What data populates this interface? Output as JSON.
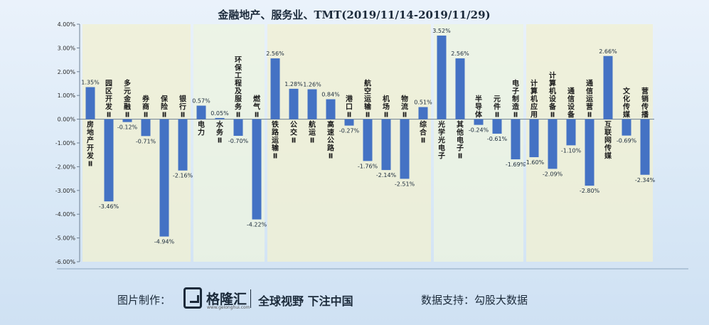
{
  "chart_data": {
    "type": "bar",
    "title": "金融地产、服务业、TMT(2019/11/14-2019/11/29)",
    "xlabel": "",
    "ylabel": "",
    "ylim": [
      -6,
      4
    ],
    "yticks": [
      "4.00%",
      "3.00%",
      "2.00%",
      "1.00%",
      "0.00%",
      "-1.00%",
      "-2.00%",
      "-3.00%",
      "-4.00%",
      "-5.00%",
      "-6.00%"
    ],
    "grid": false,
    "bar_color": "#4472c4",
    "categories": [
      "房地产开发Ⅱ",
      "园区开发Ⅱ",
      "多元金融Ⅱ",
      "券商Ⅱ",
      "保险Ⅱ",
      "银行Ⅱ",
      "电力",
      "水务Ⅱ",
      "环保工程及服务Ⅱ",
      "燃气Ⅱ",
      "铁路运输Ⅱ",
      "公交Ⅱ",
      "航运Ⅱ",
      "高速公路Ⅱ",
      "港口Ⅱ",
      "航空运输Ⅱ",
      "机场Ⅱ",
      "物流Ⅱ",
      "综合Ⅱ",
      "光学光电子",
      "其他电子Ⅱ",
      "半导体",
      "元件Ⅱ",
      "电子制造Ⅱ",
      "计算机应用",
      "计算机设备Ⅱ",
      "通信设备",
      "通信运营Ⅱ",
      "互联网传媒",
      "文化传媒",
      "营销传播"
    ],
    "values": [
      1.35,
      -3.46,
      -0.12,
      -0.71,
      -4.94,
      -2.16,
      0.57,
      0.05,
      -0.7,
      -4.22,
      2.56,
      1.28,
      1.26,
      0.84,
      -0.27,
      -1.76,
      -2.14,
      -2.51,
      0.51,
      3.52,
      2.56,
      -0.24,
      -0.61,
      -1.69,
      -1.6,
      -2.09,
      -1.1,
      -2.8,
      2.66,
      -0.69,
      -2.34
    ],
    "data_labels": [
      "1.35%",
      "-3.46%",
      "-0.12%",
      "-0.71%",
      "-4.94%",
      "-2.16%",
      "0.57%",
      "0.05%",
      "-0.70%",
      "-4.22%",
      "2.56%",
      "1.28%",
      "1.26%",
      "0.84%",
      "-0.27%",
      "-1.76%",
      "-2.14%",
      "-2.51%",
      "0.51%",
      "3.52%",
      "2.56%",
      "-0.24%",
      "-0.61%",
      "-1.69%",
      "-1.60%",
      "-2.09%",
      "-1.10%",
      "-2.80%",
      "2.66%",
      "-0.69%",
      "-2.34%"
    ],
    "group_colors": [
      "#f2f0d0",
      "#eef4df",
      "#f2f0d0",
      "#eef4df",
      "#f2f0d0"
    ],
    "group_spans": [
      [
        0,
        5
      ],
      [
        6,
        9
      ],
      [
        10,
        18
      ],
      [
        19,
        23
      ],
      [
        24,
        30
      ]
    ]
  },
  "footer": {
    "credit_label": "图片制作：",
    "logo_name": "格隆汇",
    "logo_sub": "www.gelonghui.com",
    "slogan": "全球视野 下注中国",
    "support": "数据支持：勾股大数据"
  }
}
